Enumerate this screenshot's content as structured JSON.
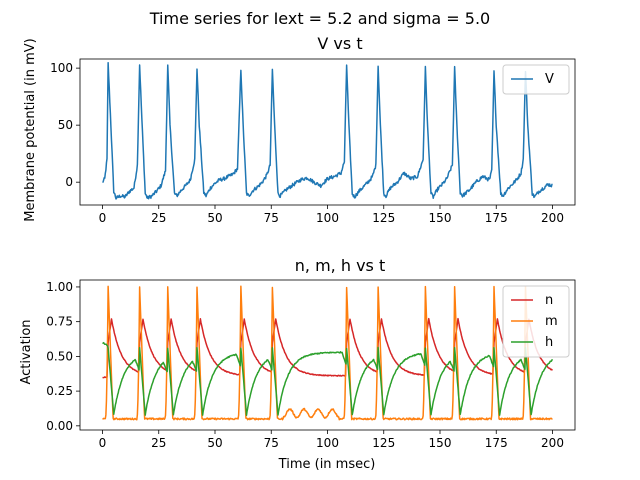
{
  "figure": {
    "suptitle": "Time series for Iext = 5.2 and sigma = 5.0"
  },
  "chart_data": [
    {
      "type": "line",
      "title": "V vs t",
      "xlabel": "",
      "ylabel": "Membrane potential (in mV)",
      "xlim": [
        -10,
        210
      ],
      "ylim": [
        -20,
        108
      ],
      "xticks": [
        0,
        25,
        50,
        75,
        100,
        125,
        150,
        175,
        200
      ],
      "yticks": [
        0,
        50,
        100
      ],
      "grid": false,
      "legend": "top-right",
      "spike_times": [
        2.5,
        16.5,
        29,
        42,
        61.5,
        75.5,
        108.5,
        122.5,
        143.5,
        156.5,
        174,
        188
      ],
      "series": [
        {
          "name": "V",
          "color": "#1f77b4",
          "x": [
            0,
            1,
            2,
            2.5,
            3.5,
            5,
            6,
            8,
            10,
            12,
            14,
            15.5,
            16.5,
            17.5,
            19,
            20,
            22,
            24,
            26,
            28,
            29,
            30,
            32,
            33,
            35,
            37,
            39,
            41,
            42,
            43,
            45,
            46,
            48,
            50,
            52,
            54,
            56,
            58,
            60,
            61.5,
            62.5,
            64,
            65,
            67,
            69,
            71,
            73,
            74.5,
            75.5,
            76.5,
            78,
            79,
            82,
            85,
            88,
            91,
            94,
            97,
            100,
            103,
            106,
            107.5,
            108.5,
            109.5,
            111,
            112,
            114,
            116,
            118,
            120,
            121.5,
            122.5,
            123.5,
            125,
            126,
            128,
            131,
            134,
            137,
            140,
            142.5,
            143.5,
            144.5,
            146,
            147,
            149,
            151,
            153,
            155.5,
            156.5,
            157.5,
            159,
            160,
            163,
            166,
            169,
            172,
            173,
            174,
            175,
            177,
            178,
            180,
            182,
            184,
            186,
            187,
            188,
            189,
            191,
            192,
            194,
            196,
            198,
            200
          ],
          "y": [
            0,
            3,
            20,
            104,
            60,
            -8,
            -14,
            -12,
            -13,
            -8,
            -5,
            15,
            103,
            55,
            -10,
            -14,
            -12,
            -8,
            -3,
            10,
            102,
            50,
            -10,
            -12,
            -7,
            -3,
            2,
            20,
            100,
            50,
            -9,
            -12,
            -5,
            -1,
            2,
            3,
            5,
            7,
            12,
            99,
            50,
            -10,
            -12,
            -7,
            -4,
            0,
            6,
            15,
            99,
            50,
            -10,
            -12,
            -6,
            -2,
            2,
            4,
            0,
            -3,
            3,
            5,
            8,
            18,
            103,
            50,
            -10,
            -13,
            -8,
            -4,
            0,
            5,
            15,
            102,
            50,
            -10,
            -12,
            -5,
            0,
            8,
            3,
            5,
            20,
            100,
            48,
            -10,
            -13,
            -6,
            -2,
            3,
            15,
            100,
            50,
            -9,
            -12,
            -7,
            0,
            5,
            2,
            10,
            97,
            50,
            -10,
            -12,
            -6,
            -2,
            2,
            8,
            20,
            98,
            50,
            -10,
            -13,
            -8,
            -5,
            -2,
            -3
          ]
        }
      ]
    },
    {
      "type": "line",
      "title": "n, m, h vs t",
      "xlabel": "Time (in msec)",
      "ylabel": "Activation",
      "xlim": [
        -10,
        210
      ],
      "ylim": [
        -0.03,
        1.05
      ],
      "xticks": [
        0,
        25,
        50,
        75,
        100,
        125,
        150,
        175,
        200
      ],
      "yticks": [
        0.0,
        0.25,
        0.5,
        0.75,
        1.0
      ],
      "ytick_labels": [
        "0.00",
        "0.25",
        "0.50",
        "0.75",
        "1.00"
      ],
      "grid": false,
      "legend": "top-right",
      "series": [
        {
          "name": "n",
          "color": "#d62728"
        },
        {
          "name": "m",
          "color": "#ff7f0e"
        },
        {
          "name": "h",
          "color": "#2ca02c"
        }
      ]
    }
  ]
}
